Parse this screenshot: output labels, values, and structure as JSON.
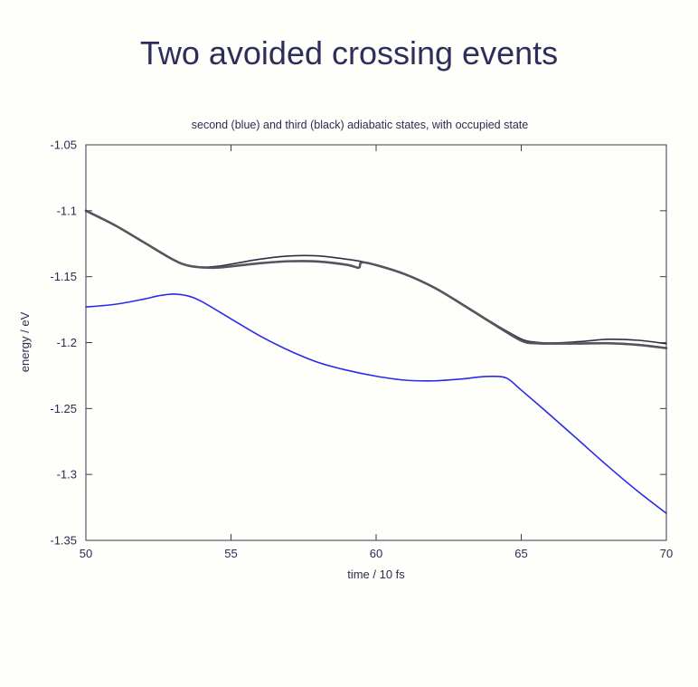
{
  "title": "Two avoided crossing events",
  "chart_data": {
    "type": "line",
    "subtitle": "second (blue) and third (black) adiabatic states, with occupied state",
    "xlabel": "time / 10 fs",
    "ylabel": "energy / eV",
    "xlim": [
      50,
      70
    ],
    "ylim": [
      -1.35,
      -1.05
    ],
    "xticks": [
      "50",
      "55",
      "60",
      "65",
      "70"
    ],
    "yticks": [
      "-1.05",
      "-1.1",
      "-1.15",
      "-1.2",
      "-1.25",
      "-1.3",
      "-1.35"
    ],
    "grid": false,
    "series": [
      {
        "color": "#2a2aee",
        "x": [
          50,
          51,
          52,
          52.5,
          53,
          53.5,
          54,
          55,
          56,
          57,
          58,
          59,
          60,
          61,
          62,
          63,
          63.5,
          64,
          64.5,
          65,
          66,
          67,
          68,
          69,
          70
        ],
        "y": [
          -1.173,
          -1.171,
          -1.167,
          -1.1645,
          -1.1632,
          -1.1645,
          -1.169,
          -1.182,
          -1.195,
          -1.206,
          -1.215,
          -1.221,
          -1.2255,
          -1.2285,
          -1.229,
          -1.2275,
          -1.2262,
          -1.2256,
          -1.227,
          -1.236,
          -1.255,
          -1.2745,
          -1.294,
          -1.3125,
          -1.3295
        ]
      },
      {
        "color": "#2e2e48",
        "x": [
          50,
          51,
          52,
          53,
          53.5,
          54,
          54.5,
          55,
          56,
          57,
          58,
          59,
          59.5,
          60,
          61,
          62,
          63,
          64,
          65,
          65.5,
          66,
          67,
          68,
          69,
          70
        ],
        "y": [
          -1.1,
          -1.111,
          -1.124,
          -1.137,
          -1.1415,
          -1.1428,
          -1.1422,
          -1.1405,
          -1.1367,
          -1.1343,
          -1.1342,
          -1.1368,
          -1.1385,
          -1.141,
          -1.148,
          -1.158,
          -1.1712,
          -1.1848,
          -1.1972,
          -1.1997,
          -1.2003,
          -1.1993,
          -1.1975,
          -1.1982,
          -1.2008
        ]
      },
      {
        "color": "#55555f",
        "x": [
          50,
          51,
          52,
          53,
          53.5,
          54,
          54.5,
          55,
          56,
          57,
          58,
          59,
          59.4,
          59.5,
          60,
          61,
          62,
          63,
          64,
          65,
          65.5,
          66,
          67,
          68,
          69,
          70
        ],
        "y": [
          -1.1,
          -1.111,
          -1.124,
          -1.137,
          -1.1415,
          -1.143,
          -1.1432,
          -1.1422,
          -1.1398,
          -1.1383,
          -1.1385,
          -1.141,
          -1.1432,
          -1.1392,
          -1.1412,
          -1.1482,
          -1.1583,
          -1.1715,
          -1.1853,
          -1.1985,
          -1.2005,
          -1.2007,
          -1.2007,
          -1.2005,
          -1.2017,
          -1.2042
        ]
      }
    ]
  }
}
